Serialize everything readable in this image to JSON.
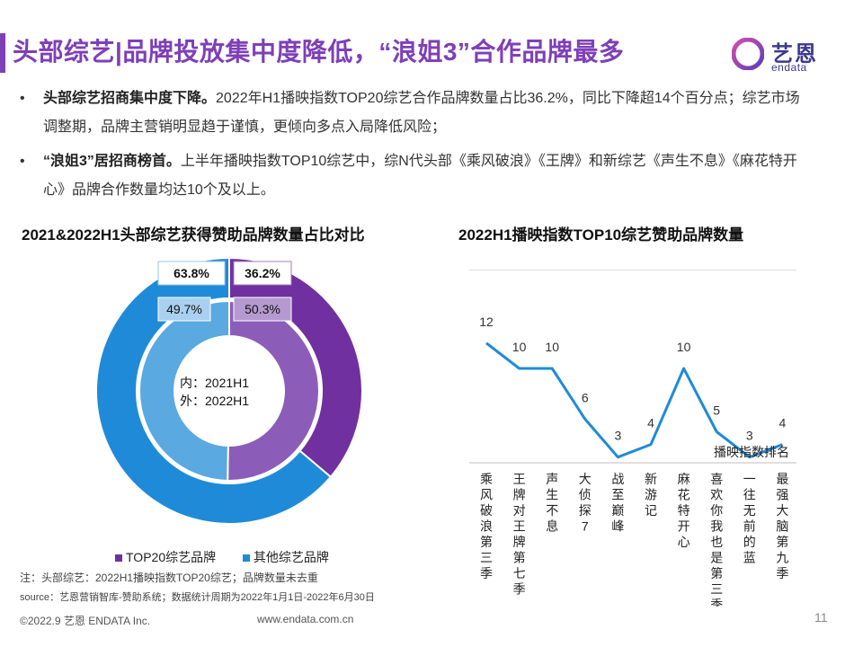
{
  "header": {
    "title": "头部综艺|品牌投放集中度降低，“浪姐3”合作品牌最多",
    "logo_text_cn": "艺恩",
    "logo_text_en": "endata"
  },
  "bullets": [
    {
      "symbol": "•",
      "bold": "头部综艺招商集中度下降。",
      "text": "2022年H1播映指数TOP20综艺合作品牌数量占比36.2%，同比下降超14个百分点；综艺市场调整期，品牌主营销明显趋于谨慎，更倾向多点入局降低风险；"
    },
    {
      "symbol": "•",
      "bold": "“浪姐3”居招商榜首。",
      "text": "上半年播映指数TOP10综艺中，综N代头部《乘风破浪》《王牌》和新综艺《声生不息》《麻花特开心》品牌合作数量均达10个及以上。"
    }
  ],
  "colors": {
    "accent": "#7e3fb8",
    "purple_series": "#7030a0",
    "blue_series": "#1f8bd8",
    "line": "#1f8bd8",
    "inner_purple": "#8c5db8",
    "inner_blue": "#5aa9e0"
  },
  "donut": {
    "center_line1": "内：2021H1",
    "center_line2": "外：2022H1",
    "legend": [
      "TOP20综艺品牌",
      "其他综艺品牌"
    ]
  },
  "chart_data": [
    {
      "type": "pie",
      "variant": "double-donut",
      "title": "2021&2022H1头部综艺获得赞助品牌数量占比对比",
      "categories": [
        "TOP20综艺品牌",
        "其他综艺品牌"
      ],
      "series": [
        {
          "name": "外：2022H1",
          "values": [
            36.2,
            63.8
          ],
          "labels": [
            "36.2%",
            "63.8%"
          ]
        },
        {
          "name": "内：2021H1",
          "values": [
            50.3,
            49.7
          ],
          "labels": [
            "50.3%",
            "49.7%"
          ]
        }
      ],
      "legend_position": "bottom"
    },
    {
      "type": "line",
      "title": "2022H1播映指数TOP10综艺赞助品牌数量",
      "xlabel": "播映指数排名",
      "ylabel": "",
      "categories": [
        "乘风破浪第三季",
        "王牌对王牌第七季",
        "声生不息",
        "大侦探7",
        "战至巅峰",
        "新游记",
        "麻花特开心",
        "喜欢你我也是第三季",
        "一往无前的蓝",
        "最强大脑第九季"
      ],
      "values": [
        12,
        10,
        10,
        6,
        3,
        4,
        10,
        5,
        3,
        4
      ],
      "ylim": [
        0,
        14
      ],
      "grid": false
    }
  ],
  "footer": {
    "note": "注：头部综艺：2022H1播映指数TOP20综艺；品牌数量未去重",
    "source": "source：艺恩营销智库-赞助系统；数据统计周期为2022年1月1日-2022年6月30日",
    "copyright": "©2022.9 艺恩 ENDATA Inc.",
    "website": "www.endata.com.cn",
    "page_number": "11"
  }
}
